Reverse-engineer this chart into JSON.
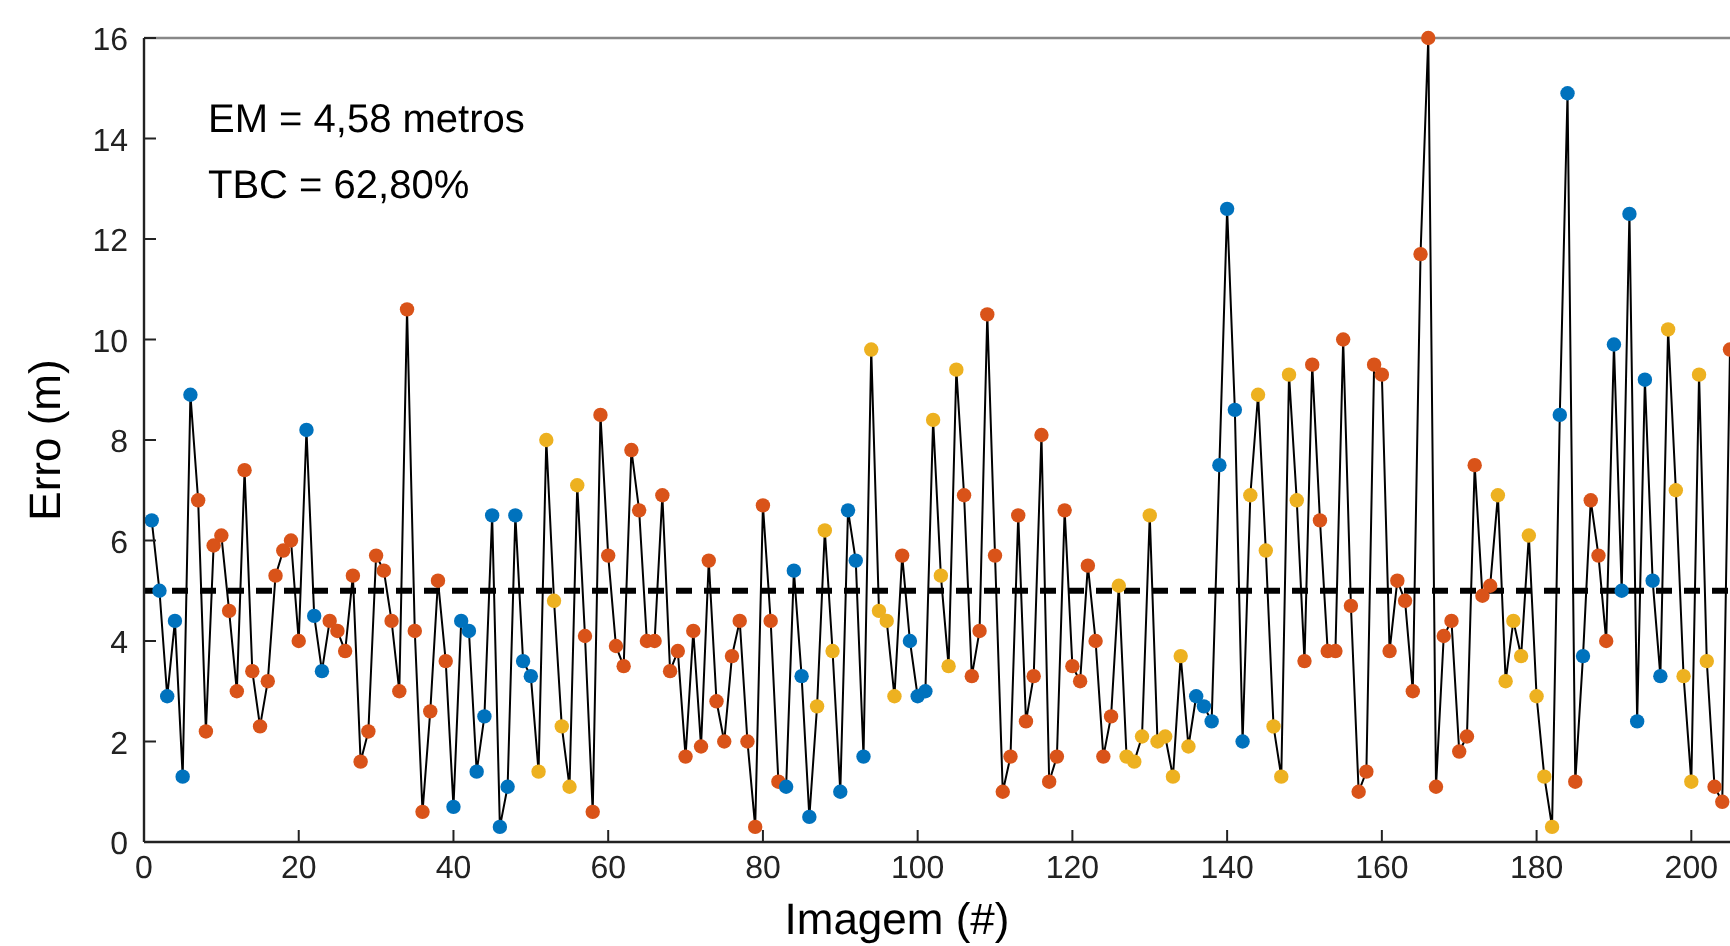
{
  "chart_data": {
    "type": "line",
    "xlabel": "Imagem (#)",
    "ylabel": "Erro (m)",
    "annotations": [
      "EM = 4,58 metros",
      "TBC = 62,80%"
    ],
    "xlim": [
      0,
      205
    ],
    "xticks": [
      0,
      20,
      40,
      60,
      80,
      100,
      120,
      140,
      160,
      180,
      200
    ],
    "ylim": [
      0,
      16
    ],
    "yticks": [
      0,
      2,
      4,
      6,
      8,
      10,
      12,
      14,
      16
    ],
    "grid": false,
    "marker": "circle",
    "line_style": "solid",
    "ref_lines": [
      {
        "axis": "y",
        "value": 5,
        "color": "#000000",
        "line_style": "dashed"
      }
    ],
    "series": [
      {
        "color": "#000000",
        "x": [
          1,
          2,
          3,
          4,
          5,
          6,
          7,
          8,
          9,
          10,
          11,
          12,
          13,
          14,
          15,
          16,
          17,
          18,
          19,
          20,
          21,
          22,
          23,
          24,
          25,
          26,
          27,
          28,
          29,
          30,
          31,
          32,
          33,
          34,
          35,
          36,
          37,
          38,
          39,
          40,
          41,
          42,
          43,
          44,
          45,
          46,
          47,
          48,
          49,
          50,
          51,
          52,
          53,
          54,
          55,
          56,
          57,
          58,
          59,
          60,
          61,
          62,
          63,
          64,
          65,
          66,
          67,
          68,
          69,
          70,
          71,
          72,
          73,
          74,
          75,
          76,
          77,
          78,
          79,
          80,
          81,
          82,
          83,
          84,
          85,
          86,
          87,
          88,
          89,
          90,
          91,
          92,
          93,
          94,
          95,
          96,
          97,
          98,
          99,
          100,
          101,
          102,
          103,
          104,
          105,
          106,
          107,
          108,
          109,
          110,
          111,
          112,
          113,
          114,
          115,
          116,
          117,
          118,
          119,
          120,
          121,
          122,
          123,
          124,
          125,
          126,
          127,
          128,
          129,
          130,
          131,
          132,
          133,
          134,
          135,
          136,
          137,
          138,
          139,
          140,
          141,
          142,
          143,
          144,
          145,
          146,
          147,
          148,
          149,
          150,
          151,
          152,
          153,
          154,
          155,
          156,
          157,
          158,
          159,
          160,
          161,
          162,
          163,
          164,
          165,
          166,
          167,
          168,
          169,
          170,
          171,
          172,
          173,
          174,
          175,
          176,
          177,
          178,
          179,
          180,
          181,
          182,
          183,
          184,
          185,
          186,
          187,
          188,
          189,
          190,
          191,
          192,
          193,
          194,
          195,
          196,
          197,
          198,
          199,
          200,
          201,
          202,
          203,
          204,
          205
        ],
        "values": [
          6.4,
          5.0,
          2.9,
          4.4,
          1.3,
          8.9,
          6.8,
          2.2,
          5.9,
          6.1,
          4.6,
          3.0,
          7.4,
          3.4,
          2.3,
          3.2,
          5.3,
          5.8,
          6.0,
          4.0,
          8.2,
          4.5,
          3.4,
          4.4,
          4.2,
          3.8,
          5.3,
          1.6,
          2.2,
          5.7,
          5.4,
          4.4,
          3.0,
          10.6,
          4.2,
          0.6,
          2.6,
          5.2,
          3.6,
          0.7,
          4.4,
          4.2,
          1.4,
          2.5,
          6.5,
          0.3,
          1.1,
          6.5,
          3.6,
          3.3,
          1.4,
          8.0,
          4.8,
          2.3,
          1.1,
          7.1,
          4.1,
          0.6,
          8.5,
          5.7,
          3.9,
          3.5,
          7.8,
          6.6,
          4.0,
          4.0,
          6.9,
          3.4,
          3.8,
          1.7,
          4.2,
          1.9,
          5.6,
          2.8,
          2.0,
          3.7,
          4.4,
          2.0,
          0.3,
          6.7,
          4.4,
          1.2,
          1.1,
          5.4,
          3.3,
          0.5,
          2.7,
          6.2,
          3.8,
          1.0,
          6.6,
          5.6,
          1.7,
          9.8,
          4.6,
          4.4,
          2.9,
          5.7,
          4.0,
          2.9,
          3.0,
          8.4,
          5.3,
          3.5,
          9.4,
          6.9,
          3.3,
          4.2,
          10.5,
          5.7,
          1.0,
          1.7,
          6.5,
          2.4,
          3.3,
          8.1,
          1.2,
          1.7,
          6.6,
          3.5,
          3.2,
          5.5,
          4.0,
          1.7,
          2.5,
          5.1,
          1.7,
          1.6,
          2.1,
          6.5,
          2.0,
          2.1,
          1.3,
          3.7,
          1.9,
          2.9,
          2.7,
          2.4,
          7.5,
          12.6,
          8.6,
          2.0,
          6.9,
          8.9,
          5.8,
          2.3,
          1.3,
          9.3,
          6.8,
          3.6,
          9.5,
          6.4,
          3.8,
          3.8,
          10.0,
          4.7,
          1.0,
          1.4,
          9.5,
          9.3,
          3.8,
          5.2,
          4.8,
          3.0,
          11.7,
          16.0,
          1.1,
          4.1,
          4.4,
          1.8,
          2.1,
          7.5,
          4.9,
          5.1,
          6.9,
          3.2,
          4.4,
          3.7,
          6.1,
          2.9,
          1.3,
          0.3,
          8.5,
          14.9,
          1.2,
          3.7,
          6.8,
          5.7,
          4.0,
          9.9,
          5.0,
          12.5,
          2.4,
          9.2,
          5.2,
          3.3,
          10.2,
          7.0,
          3.3,
          1.2,
          9.3,
          3.6,
          1.1,
          0.8,
          9.8
        ],
        "colors": [
          "#0072bd",
          "#0072bd",
          "#0072bd",
          "#0072bd",
          "#0072bd",
          "#0072bd",
          "#d95319",
          "#d95319",
          "#d95319",
          "#d95319",
          "#d95319",
          "#d95319",
          "#d95319",
          "#d95319",
          "#d95319",
          "#d95319",
          "#d95319",
          "#d95319",
          "#d95319",
          "#d95319",
          "#0072bd",
          "#0072bd",
          "#0072bd",
          "#d95319",
          "#d95319",
          "#d95319",
          "#d95319",
          "#d95319",
          "#d95319",
          "#d95319",
          "#d95319",
          "#d95319",
          "#d95319",
          "#d95319",
          "#d95319",
          "#d95319",
          "#d95319",
          "#d95319",
          "#d95319",
          "#0072bd",
          "#0072bd",
          "#0072bd",
          "#0072bd",
          "#0072bd",
          "#0072bd",
          "#0072bd",
          "#0072bd",
          "#0072bd",
          "#0072bd",
          "#0072bd",
          "#edb120",
          "#edb120",
          "#edb120",
          "#edb120",
          "#edb120",
          "#edb120",
          "#d95319",
          "#d95319",
          "#d95319",
          "#d95319",
          "#d95319",
          "#d95319",
          "#d95319",
          "#d95319",
          "#d95319",
          "#d95319",
          "#d95319",
          "#d95319",
          "#d95319",
          "#d95319",
          "#d95319",
          "#d95319",
          "#d95319",
          "#d95319",
          "#d95319",
          "#d95319",
          "#d95319",
          "#d95319",
          "#d95319",
          "#d95319",
          "#d95319",
          "#d95319",
          "#0072bd",
          "#0072bd",
          "#0072bd",
          "#0072bd",
          "#edb120",
          "#edb120",
          "#edb120",
          "#0072bd",
          "#0072bd",
          "#0072bd",
          "#0072bd",
          "#edb120",
          "#edb120",
          "#edb120",
          "#edb120",
          "#d95319",
          "#0072bd",
          "#0072bd",
          "#0072bd",
          "#edb120",
          "#edb120",
          "#edb120",
          "#edb120",
          "#d95319",
          "#d95319",
          "#d95319",
          "#d95319",
          "#d95319",
          "#d95319",
          "#d95319",
          "#d95319",
          "#d95319",
          "#d95319",
          "#d95319",
          "#d95319",
          "#d95319",
          "#d95319",
          "#d95319",
          "#d95319",
          "#d95319",
          "#d95319",
          "#d95319",
          "#d95319",
          "#edb120",
          "#edb120",
          "#edb120",
          "#edb120",
          "#edb120",
          "#edb120",
          "#edb120",
          "#edb120",
          "#edb120",
          "#edb120",
          "#0072bd",
          "#0072bd",
          "#0072bd",
          "#0072bd",
          "#0072bd",
          "#0072bd",
          "#0072bd",
          "#edb120",
          "#edb120",
          "#edb120",
          "#edb120",
          "#edb120",
          "#edb120",
          "#edb120",
          "#d95319",
          "#d95319",
          "#d95319",
          "#d95319",
          "#d95319",
          "#d95319",
          "#d95319",
          "#d95319",
          "#d95319",
          "#d95319",
          "#d95319",
          "#d95319",
          "#d95319",
          "#d95319",
          "#d95319",
          "#d95319",
          "#d95319",
          "#d95319",
          "#d95319",
          "#d95319",
          "#d95319",
          "#d95319",
          "#d95319",
          "#d95319",
          "#d95319",
          "#edb120",
          "#edb120",
          "#edb120",
          "#edb120",
          "#edb120",
          "#edb120",
          "#edb120",
          "#edb120",
          "#0072bd",
          "#0072bd",
          "#d95319",
          "#0072bd",
          "#d95319",
          "#d95319",
          "#d95319",
          "#0072bd",
          "#0072bd",
          "#0072bd",
          "#0072bd",
          "#0072bd",
          "#0072bd",
          "#0072bd",
          "#edb120",
          "#edb120",
          "#edb120",
          "#edb120",
          "#edb120",
          "#edb120",
          "#d95319",
          "#d95319",
          "#d95319"
        ]
      }
    ]
  }
}
